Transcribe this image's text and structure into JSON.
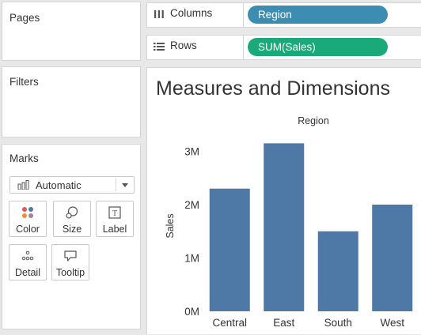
{
  "pages": {
    "title": "Pages"
  },
  "filters": {
    "title": "Filters"
  },
  "marks": {
    "title": "Marks",
    "mark_type": "Automatic",
    "buttons": [
      {
        "label": "Color",
        "icon": "color-dots-icon"
      },
      {
        "label": "Size",
        "icon": "size-icon"
      },
      {
        "label": "Label",
        "icon": "label-icon"
      },
      {
        "label": "Detail",
        "icon": "detail-dots-icon"
      },
      {
        "label": "Tooltip",
        "icon": "tooltip-icon"
      }
    ]
  },
  "shelves": {
    "columns": {
      "label": "Columns",
      "pill": "Region",
      "icon": "columns-icon",
      "pill_color": "#3d8db3"
    },
    "rows": {
      "label": "Rows",
      "pill": "SUM(Sales)",
      "icon": "rows-icon",
      "pill_color": "#1aaa7a"
    }
  },
  "viz": {
    "title": "Measures and Dimensions"
  },
  "chart_data": {
    "type": "bar",
    "title": "",
    "column_header": "Region",
    "categories": [
      "Central",
      "East",
      "South",
      "West"
    ],
    "values": [
      2300000,
      3150000,
      1500000,
      2000000
    ],
    "xlabel": "",
    "ylabel": "Sales",
    "ylim": [
      0,
      3200000
    ],
    "yticks": [
      {
        "value": 0,
        "label": "0M"
      },
      {
        "value": 1000000,
        "label": "1M"
      },
      {
        "value": 2000000,
        "label": "2M"
      },
      {
        "value": 3000000,
        "label": "3M"
      }
    ],
    "bar_color": "#4e79a7",
    "grid": false
  }
}
